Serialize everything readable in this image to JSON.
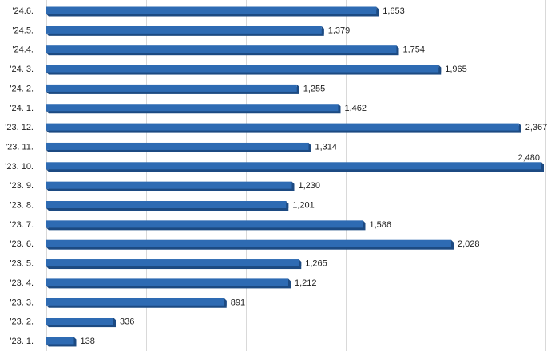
{
  "chart_data": {
    "type": "bar",
    "orientation": "horizontal",
    "title": "",
    "xlabel": "",
    "ylabel": "",
    "categories": [
      "'24.6.",
      "'24.5.",
      "'24.4.",
      "'24. 3.",
      "'24. 2.",
      "'24. 1.",
      "'23. 12.",
      "'23. 11.",
      "'23. 10.",
      "'23. 9.",
      "'23. 8.",
      "'23. 7.",
      "'23. 6.",
      "'23. 5.",
      "'23. 4.",
      "'23. 3.",
      "'23. 2.",
      "'23. 1."
    ],
    "values": [
      1653,
      1379,
      1754,
      1965,
      1255,
      1462,
      2367,
      1314,
      2480,
      1230,
      1201,
      1586,
      2028,
      1265,
      1212,
      891,
      336,
      138
    ],
    "value_labels": [
      "1,653",
      "1,379",
      "1,754",
      "1,965",
      "1,255",
      "1,462",
      "2,367",
      "1,314",
      "2,480",
      "1,230",
      "1,201",
      "1,586",
      "2,028",
      "1,265",
      "1,212",
      "891",
      "336",
      "138"
    ],
    "xlim": [
      0,
      2500
    ],
    "gridlines": true,
    "bar_color": "#2e6bb3",
    "bar_shadow_color": "#1c4a82",
    "grid_color": "#d9d9d9"
  }
}
